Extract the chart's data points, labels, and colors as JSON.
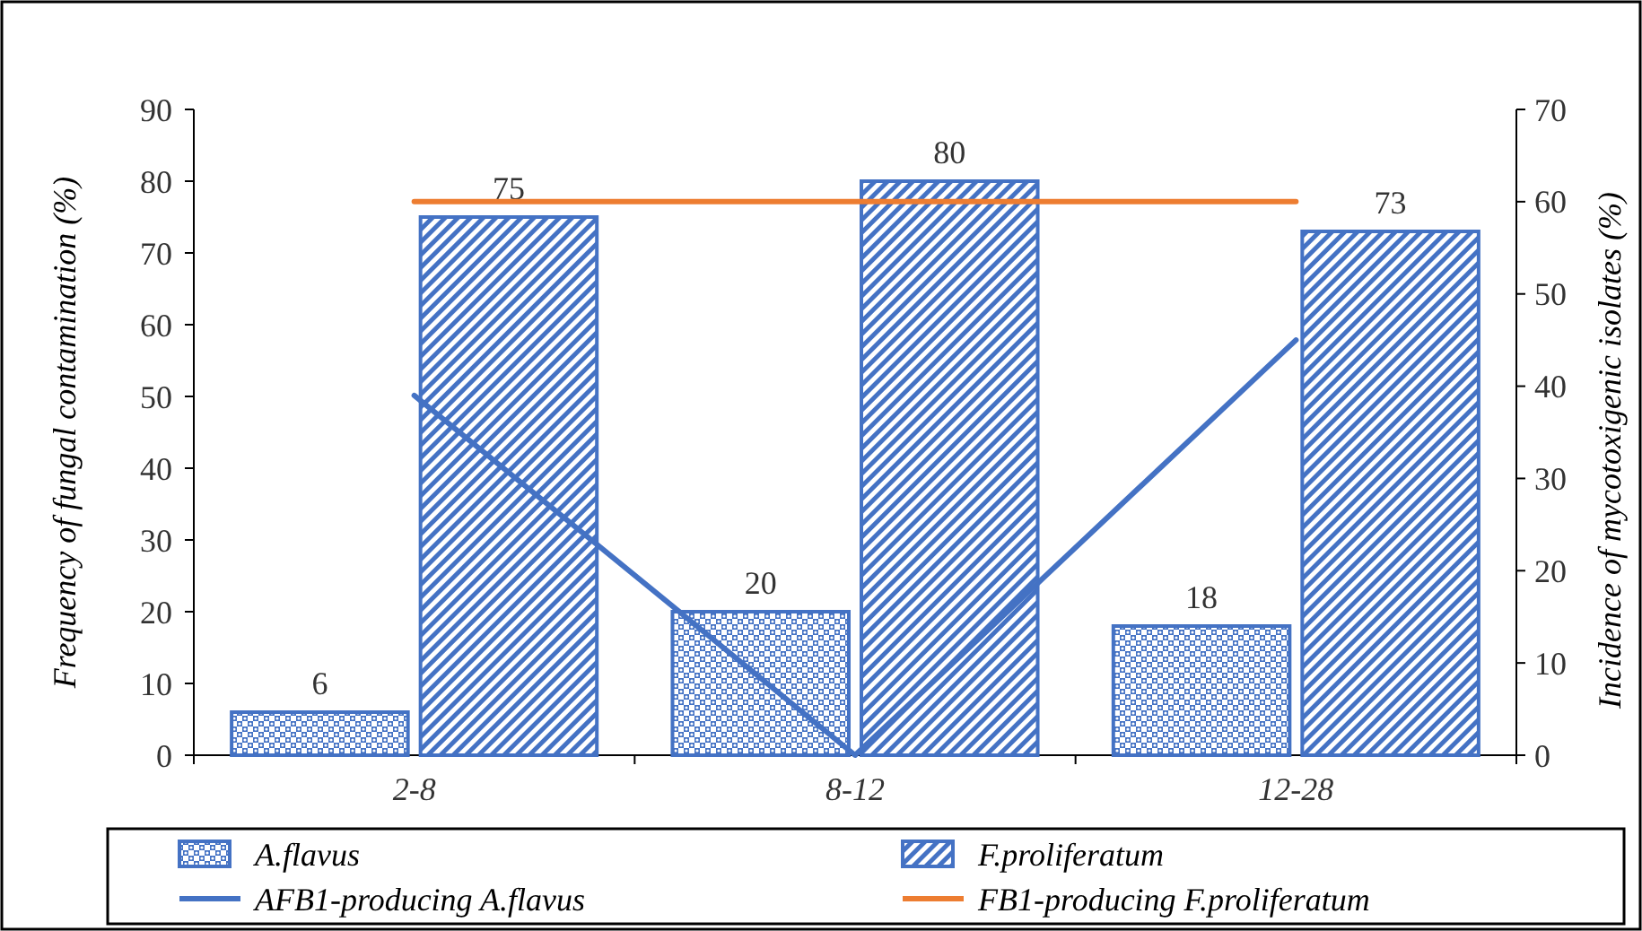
{
  "chart_data": {
    "type": "bar",
    "ylabel": "Frequency of fungal contamination (%)",
    "y2label": "Incidence of mycotoxigenic isolates (%)",
    "categories": [
      "2-8",
      "8-12",
      "12-28"
    ],
    "ylim": [
      0,
      90
    ],
    "yticks": [
      0,
      10,
      20,
      30,
      40,
      50,
      60,
      70,
      80,
      90
    ],
    "y2lim": [
      0,
      70
    ],
    "y2ticks": [
      0,
      10,
      20,
      30,
      40,
      50,
      60,
      70
    ],
    "legend": "bottom",
    "grid": false,
    "series": [
      {
        "name": "A.flavus",
        "color": "#4472c4",
        "values": [
          6,
          20,
          18
        ],
        "value_labels": [
          "6",
          "20",
          "18"
        ]
      },
      {
        "name": "F.proliferatum",
        "color": "#4472c4",
        "values": [
          75,
          80,
          73
        ],
        "value_labels": [
          "75",
          "80",
          "73"
        ]
      },
      {
        "name": "AFB1-producing A.flavus",
        "type": "line",
        "axis": "y2",
        "color": "#4472c4",
        "values": [
          39,
          0,
          45
        ]
      },
      {
        "name": "FB1-producing F.proliferatum",
        "type": "line",
        "axis": "y2",
        "color": "#ed7d31",
        "values": [
          60,
          60,
          60
        ]
      }
    ]
  }
}
